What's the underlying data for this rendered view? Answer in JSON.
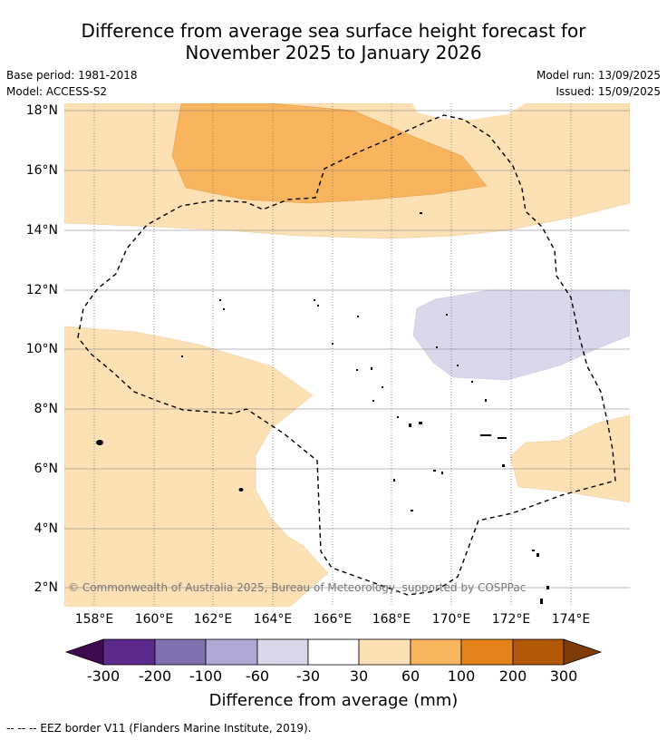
{
  "title": {
    "line1": "Difference from average sea surface height forecast for",
    "line2": "November 2025 to January 2026"
  },
  "meta": {
    "base_period": "Base period: 1981-2018",
    "model": "Model: ACCESS-S2",
    "model_run": "Model run: 13/09/2025",
    "issued": "Issued: 15/09/2025"
  },
  "axes": {
    "lat_labels": [
      "18°N",
      "16°N",
      "14°N",
      "12°N",
      "10°N",
      "8°N",
      "6°N",
      "4°N",
      "2°N"
    ],
    "lon_labels": [
      "158°E",
      "160°E",
      "162°E",
      "164°E",
      "166°E",
      "168°E",
      "170°E",
      "172°E",
      "174°E"
    ]
  },
  "colorbar": {
    "title": "Difference from average (mm)",
    "tick_labels": [
      "-300",
      "-200",
      "-100",
      "-60",
      "-30",
      "30",
      "60",
      "100",
      "200",
      "300"
    ],
    "colors": [
      "#3f0a4f",
      "#5b2a8c",
      "#8070b0",
      "#b0a8d4",
      "#d8d8ea",
      "#ffffff",
      "#fde0b4",
      "#f9b55e",
      "#e3831a",
      "#b35806",
      "#7f3b08"
    ]
  },
  "copyright": "© Commonwealth of Australia 2025, Bureau of Meteorology, supported by COSPPac",
  "footer": "--  --  -- EEZ border V11 (Flanders Marine Institute, 2019).",
  "colors": {
    "light_orange": "#fde0b4",
    "orange": "#f9b55e",
    "light_purple": "#d8d8ea",
    "eez_line": "#000000"
  }
}
